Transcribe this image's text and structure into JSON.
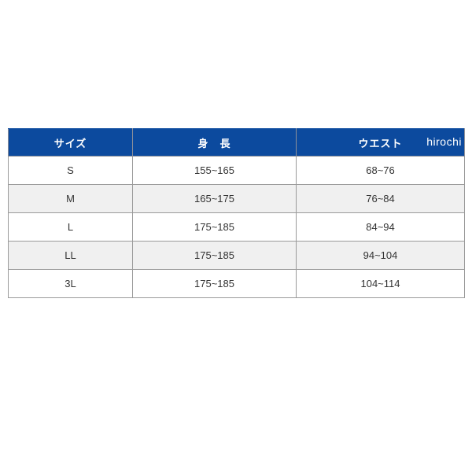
{
  "page": {
    "background_color": "#ffffff"
  },
  "watermark": {
    "text": "hirochi",
    "color": "#ffffff"
  },
  "size_chart": {
    "colors": {
      "header_bg": "#0c4a9e",
      "header_text": "#ffffff",
      "row_bg": "#ffffff",
      "row_alt_bg": "#f0f0f0",
      "border": "#9a9a9a",
      "body_text": "#333333"
    },
    "columns": [
      {
        "key": "size",
        "label": "サイズ"
      },
      {
        "key": "height",
        "label": "身　長"
      },
      {
        "key": "waist",
        "label": "ウエスト"
      }
    ],
    "rows": [
      {
        "size": "S",
        "height": "155~165",
        "waist": "68~76"
      },
      {
        "size": "M",
        "height": "165~175",
        "waist": "76~84"
      },
      {
        "size": "L",
        "height": "175~185",
        "waist": "84~94"
      },
      {
        "size": "LL",
        "height": "175~185",
        "waist": "94~104"
      },
      {
        "size": "3L",
        "height": "175~185",
        "waist": "104~114"
      }
    ]
  }
}
